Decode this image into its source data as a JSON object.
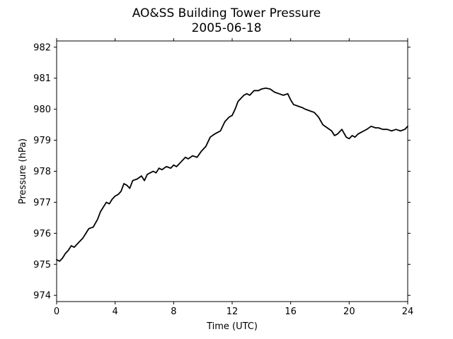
{
  "chart_data": {
    "type": "line",
    "title": "AO&SS Building Tower Pressure",
    "subtitle": "2005-06-18",
    "xlabel": "Time (UTC)",
    "ylabel": "Pressure (hPa)",
    "xlim": [
      0,
      24
    ],
    "ylim": [
      973.8,
      982.2
    ],
    "xticks": [
      0,
      4,
      8,
      12,
      16,
      20,
      24
    ],
    "yticks": [
      974,
      975,
      976,
      977,
      978,
      979,
      980,
      981,
      982
    ],
    "grid": false,
    "line_color": "#000000",
    "series": [
      {
        "x": [
          0,
          0.2,
          0.4,
          0.6,
          0.8,
          1.0,
          1.2,
          1.5,
          1.8,
          2.0,
          2.2,
          2.5,
          2.8,
          3.0,
          3.2,
          3.4,
          3.6,
          3.8,
          4.0,
          4.2,
          4.4,
          4.6,
          4.8,
          5.0,
          5.2,
          5.5,
          5.8,
          6.0,
          6.2,
          6.4,
          6.6,
          6.8,
          7.0,
          7.2,
          7.5,
          7.8,
          8.0,
          8.2,
          8.5,
          8.8,
          9.0,
          9.3,
          9.6,
          9.9,
          10.2,
          10.5,
          10.8,
          11.0,
          11.2,
          11.5,
          11.8,
          12.0,
          12.2,
          12.4,
          12.6,
          12.8,
          13.0,
          13.2,
          13.5,
          13.8,
          14.0,
          14.3,
          14.6,
          14.9,
          15.2,
          15.5,
          15.8,
          16.0,
          16.2,
          16.5,
          16.8,
          17.0,
          17.3,
          17.6,
          17.9,
          18.2,
          18.5,
          18.8,
          19.0,
          19.2,
          19.5,
          19.8,
          20.0,
          20.2,
          20.4,
          20.6,
          20.8,
          21.0,
          21.2,
          21.5,
          21.8,
          22.0,
          22.3,
          22.6,
          22.9,
          23.2,
          23.5,
          23.8,
          24.0
        ],
        "y": [
          975.15,
          975.1,
          975.2,
          975.35,
          975.45,
          975.6,
          975.55,
          975.7,
          975.85,
          976.0,
          976.15,
          976.2,
          976.45,
          976.7,
          976.85,
          977.0,
          976.95,
          977.1,
          977.2,
          977.25,
          977.35,
          977.6,
          977.55,
          977.45,
          977.7,
          977.75,
          977.85,
          977.7,
          977.9,
          977.95,
          978.0,
          977.95,
          978.1,
          978.05,
          978.15,
          978.1,
          978.2,
          978.15,
          978.3,
          978.45,
          978.4,
          978.5,
          978.45,
          978.65,
          978.8,
          979.1,
          979.2,
          979.25,
          979.3,
          979.6,
          979.75,
          979.8,
          980.0,
          980.25,
          980.35,
          980.45,
          980.5,
          980.45,
          980.6,
          980.6,
          980.65,
          980.68,
          980.65,
          980.55,
          980.5,
          980.45,
          980.5,
          980.3,
          980.15,
          980.1,
          980.05,
          980.0,
          979.95,
          979.9,
          979.75,
          979.5,
          979.4,
          979.3,
          979.15,
          979.2,
          979.35,
          979.1,
          979.05,
          979.15,
          979.1,
          979.2,
          979.25,
          979.3,
          979.35,
          979.45,
          979.4,
          979.4,
          979.35,
          979.35,
          979.3,
          979.35,
          979.3,
          979.35,
          979.45
        ]
      }
    ]
  }
}
